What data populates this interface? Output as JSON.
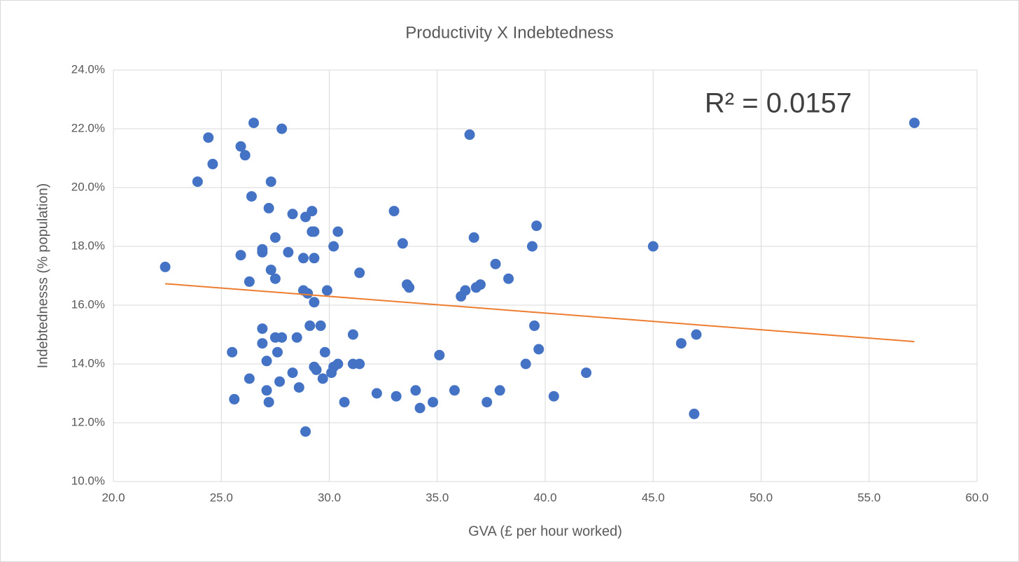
{
  "chart_data": {
    "type": "scatter",
    "title": "Productivity X Indebtedness",
    "x_label": "GVA (£ per hour worked)",
    "y_label": "Indebtednesss (% population)",
    "color": "#4472c4",
    "grid": true,
    "x": [
      23.9,
      24.4,
      24.6,
      22.4,
      25.9,
      26.1,
      26.5,
      27.8,
      27.3,
      26.4,
      27.2,
      28.3,
      29.2,
      28.9,
      29.2,
      29.3,
      30.4,
      27.5,
      30.2,
      26.9,
      26.9,
      28.1,
      25.9,
      28.8,
      29.3,
      27.3,
      26.3,
      27.5,
      28.8,
      29.0,
      29.9,
      29.3,
      31.4,
      33.0,
      33.4,
      33.6,
      33.7,
      36.5,
      36.7,
      36.3,
      36.1,
      36.8,
      37.0,
      37.7,
      38.3,
      39.4,
      39.6,
      45.0,
      57.1,
      39.5,
      39.7,
      39.1,
      41.9,
      40.4,
      46.3,
      47.0,
      46.9,
      26.9,
      26.9,
      25.5,
      27.5,
      27.8,
      28.5,
      27.6,
      27.1,
      29.1,
      29.6,
      29.8,
      31.1,
      28.3,
      29.3,
      29.4,
      30.2,
      30.4,
      31.1,
      31.4,
      29.7,
      30.1,
      26.3,
      27.7,
      27.1,
      28.6,
      25.6,
      27.2,
      28.9,
      30.7,
      32.2,
      33.1,
      34.0,
      34.2,
      34.8,
      35.1,
      35.8,
      37.3,
      37.9
    ],
    "values": [
      20.2,
      21.7,
      20.8,
      17.3,
      21.4,
      21.1,
      22.2,
      22.0,
      20.2,
      19.7,
      19.3,
      19.1,
      19.2,
      19.0,
      18.5,
      18.5,
      18.5,
      18.3,
      18.0,
      17.9,
      17.8,
      17.8,
      17.7,
      17.6,
      17.6,
      17.2,
      16.8,
      16.9,
      16.5,
      16.4,
      16.5,
      16.1,
      17.1,
      19.2,
      18.1,
      16.7,
      16.6,
      21.8,
      18.3,
      16.5,
      16.3,
      16.6,
      16.7,
      17.4,
      16.9,
      18.0,
      18.7,
      18.0,
      22.2,
      15.3,
      14.5,
      14.0,
      13.7,
      12.9,
      14.7,
      15.0,
      12.3,
      15.2,
      14.7,
      14.4,
      14.9,
      14.9,
      14.9,
      14.4,
      14.1,
      15.3,
      15.3,
      14.4,
      15.0,
      13.7,
      13.9,
      13.8,
      13.9,
      14.0,
      14.0,
      14.0,
      13.5,
      13.7,
      13.5,
      13.4,
      13.1,
      13.2,
      12.8,
      12.7,
      11.7,
      12.7,
      13.0,
      12.9,
      13.1,
      12.5,
      12.7,
      14.3,
      13.1,
      12.7,
      13.1
    ],
    "trendline": {
      "x": [
        22.4,
        57.1
      ],
      "values": [
        16.73,
        14.76
      ],
      "color": "#ed7d31",
      "label": "R² = 0.0157"
    },
    "xlim": [
      20,
      60
    ],
    "xticks": [
      {
        "value": 20,
        "label": "20.0"
      },
      {
        "value": 25,
        "label": "25.0"
      },
      {
        "value": 30,
        "label": "30.0"
      },
      {
        "value": 35,
        "label": "35.0"
      },
      {
        "value": 40,
        "label": "40.0"
      },
      {
        "value": 45,
        "label": "45.0"
      },
      {
        "value": 50,
        "label": "50.0"
      },
      {
        "value": 55,
        "label": "55.0"
      },
      {
        "value": 60,
        "label": "60.0"
      }
    ],
    "ylim": [
      10,
      24
    ],
    "yticks": [
      {
        "value": 10,
        "label": "10.0%"
      },
      {
        "value": 12,
        "label": "12.0%"
      },
      {
        "value": 14,
        "label": "14.0%"
      },
      {
        "value": 16,
        "label": "16.0%"
      },
      {
        "value": 18,
        "label": "18.0%"
      },
      {
        "value": 20,
        "label": "20.0%"
      },
      {
        "value": 22,
        "label": "22.0%"
      },
      {
        "value": 24,
        "label": "24.0%"
      }
    ]
  }
}
